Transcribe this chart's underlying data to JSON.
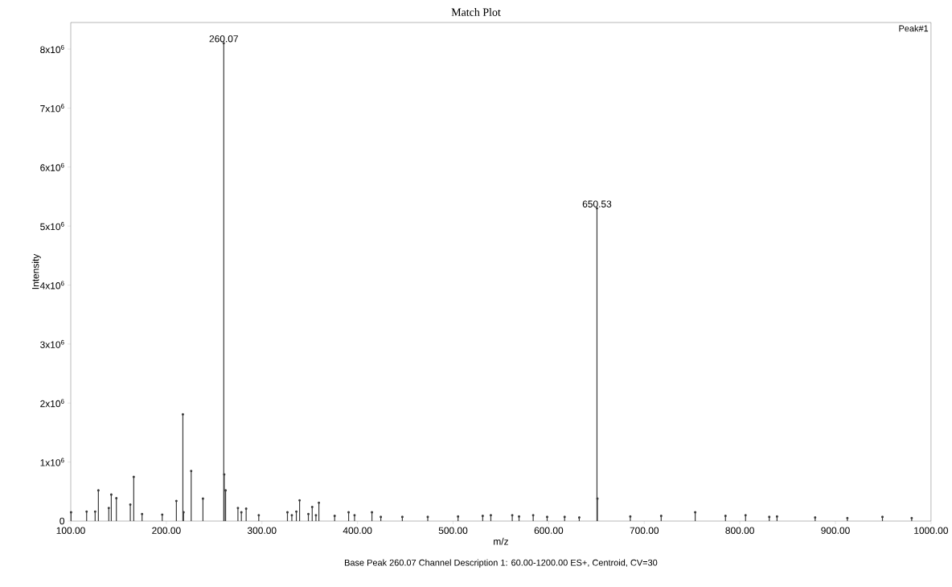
{
  "chart_data": {
    "type": "lollipop",
    "marker": "circle",
    "grid": false,
    "title": "Match Plot",
    "xlabel": "m/z",
    "ylabel": "Intensity",
    "xlim": [
      100,
      1000
    ],
    "ylim": [
      0,
      8450000
    ],
    "xticks": [
      {
        "value": 100,
        "label": "100.00"
      },
      {
        "value": 200,
        "label": "200.00"
      },
      {
        "value": 300,
        "label": "300.00"
      },
      {
        "value": 400,
        "label": "400.00"
      },
      {
        "value": 500,
        "label": "500.00"
      },
      {
        "value": 600,
        "label": "600.00"
      },
      {
        "value": 700,
        "label": "700.00"
      },
      {
        "value": 800,
        "label": "800.00"
      },
      {
        "value": 900,
        "label": "900.00"
      },
      {
        "value": 1000,
        "label": "1000.00"
      }
    ],
    "yticks": [
      0,
      {
        "value": 1000000,
        "label": "1x10$^{6}$"
      },
      {
        "value": 2000000,
        "label": "2x10$^{6}$"
      },
      {
        "value": 3000000,
        "label": "3x10$^{6}$"
      },
      {
        "value": 4000000,
        "label": "4x10$^{6}$"
      },
      {
        "value": 5000000,
        "label": "5x10$^{6}$"
      },
      {
        "value": 6000000,
        "label": "6x10$^{6}$"
      },
      {
        "value": 7000000,
        "label": "7x10$^{6}$"
      },
      {
        "value": 8000000,
        "label": "8x10$^{6}$"
      }
    ],
    "x": [
      100.3,
      116.6,
      125.5,
      128.9,
      139.8,
      142.4,
      147.7,
      162.3,
      165.9,
      174.6,
      195.7,
      210.5,
      217.3,
      218.0,
      226.0,
      238.3,
      260.07,
      260.6,
      262.0,
      274.9,
      278.5,
      283.5,
      296.7,
      326.7,
      331.3,
      336.0,
      339.4,
      348.6,
      352.6,
      356.5,
      359.6,
      376.1,
      390.7,
      396.9,
      415.1,
      424.4,
      446.9,
      473.5,
      505.2,
      531.0,
      539.5,
      561.9,
      569.0,
      583.8,
      598.4,
      616.7,
      632.0,
      650.53,
      651.0,
      685.4,
      717.7,
      753.3,
      785.0,
      806.0,
      830.8,
      838.9,
      878.8,
      912.5,
      949.2,
      979.8
    ],
    "values": [
      150000,
      160000,
      160000,
      520000,
      220000,
      450000,
      390000,
      280000,
      750000,
      120000,
      110000,
      340000,
      1810000,
      150000,
      850000,
      380000,
      8100000,
      790000,
      520000,
      220000,
      150000,
      210000,
      100000,
      150000,
      100000,
      160000,
      350000,
      120000,
      240000,
      100000,
      310000,
      90000,
      150000,
      100000,
      150000,
      70000,
      70000,
      70000,
      80000,
      90000,
      100000,
      100000,
      80000,
      100000,
      70000,
      70000,
      60000,
      5300000,
      380000,
      80000,
      90000,
      150000,
      90000,
      100000,
      70000,
      80000,
      60000,
      50000,
      70000,
      50000
    ],
    "color": "#3a3a3a",
    "annotations": [
      {
        "text": "260.07",
        "x": 260.07,
        "y": 8100000
      },
      {
        "text": "650.53",
        "x": 650.53,
        "y": 5300000
      },
      "Peak#1",
      "Base Peak 260.07 Channel Description 1: 60.00-1200.00 ES+, Centroid, CV=30"
    ]
  }
}
